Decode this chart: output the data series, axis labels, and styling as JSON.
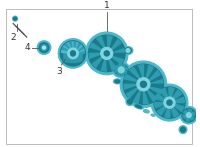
{
  "bg_color": "#ffffff",
  "border_color": "#bbbbbb",
  "part_color": "#4db8cc",
  "part_color_mid": "#2e9db0",
  "part_color_dark": "#1a7a8a",
  "part_color_light": "#80d4e0",
  "part_color_hl": "#a8e6ef",
  "line_color": "#555555",
  "label_color": "#333333",
  "fig_width": 2.0,
  "fig_height": 1.47,
  "dpi": 100
}
